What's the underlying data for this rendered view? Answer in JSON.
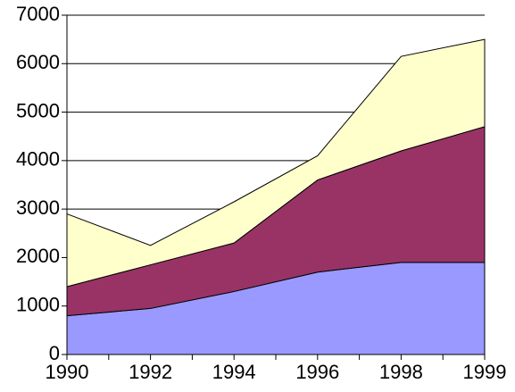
{
  "chart_data": {
    "type": "stacked-area",
    "categories": [
      "1990",
      "1992",
      "1994",
      "1996",
      "1998",
      "1999"
    ],
    "series": [
      {
        "color": "#9999ff",
        "values": [
          800,
          950,
          1300,
          1700,
          1900,
          1900
        ]
      },
      {
        "color": "#993366",
        "values": [
          600,
          900,
          1000,
          1900,
          2300,
          2800
        ]
      },
      {
        "color": "#ffffcc",
        "values": [
          1500,
          400,
          850,
          500,
          1950,
          1800
        ]
      }
    ],
    "ylim": [
      0,
      7000
    ],
    "yticks": [
      0,
      1000,
      2000,
      3000,
      4000,
      5000,
      6000,
      7000
    ],
    "grid": true
  }
}
